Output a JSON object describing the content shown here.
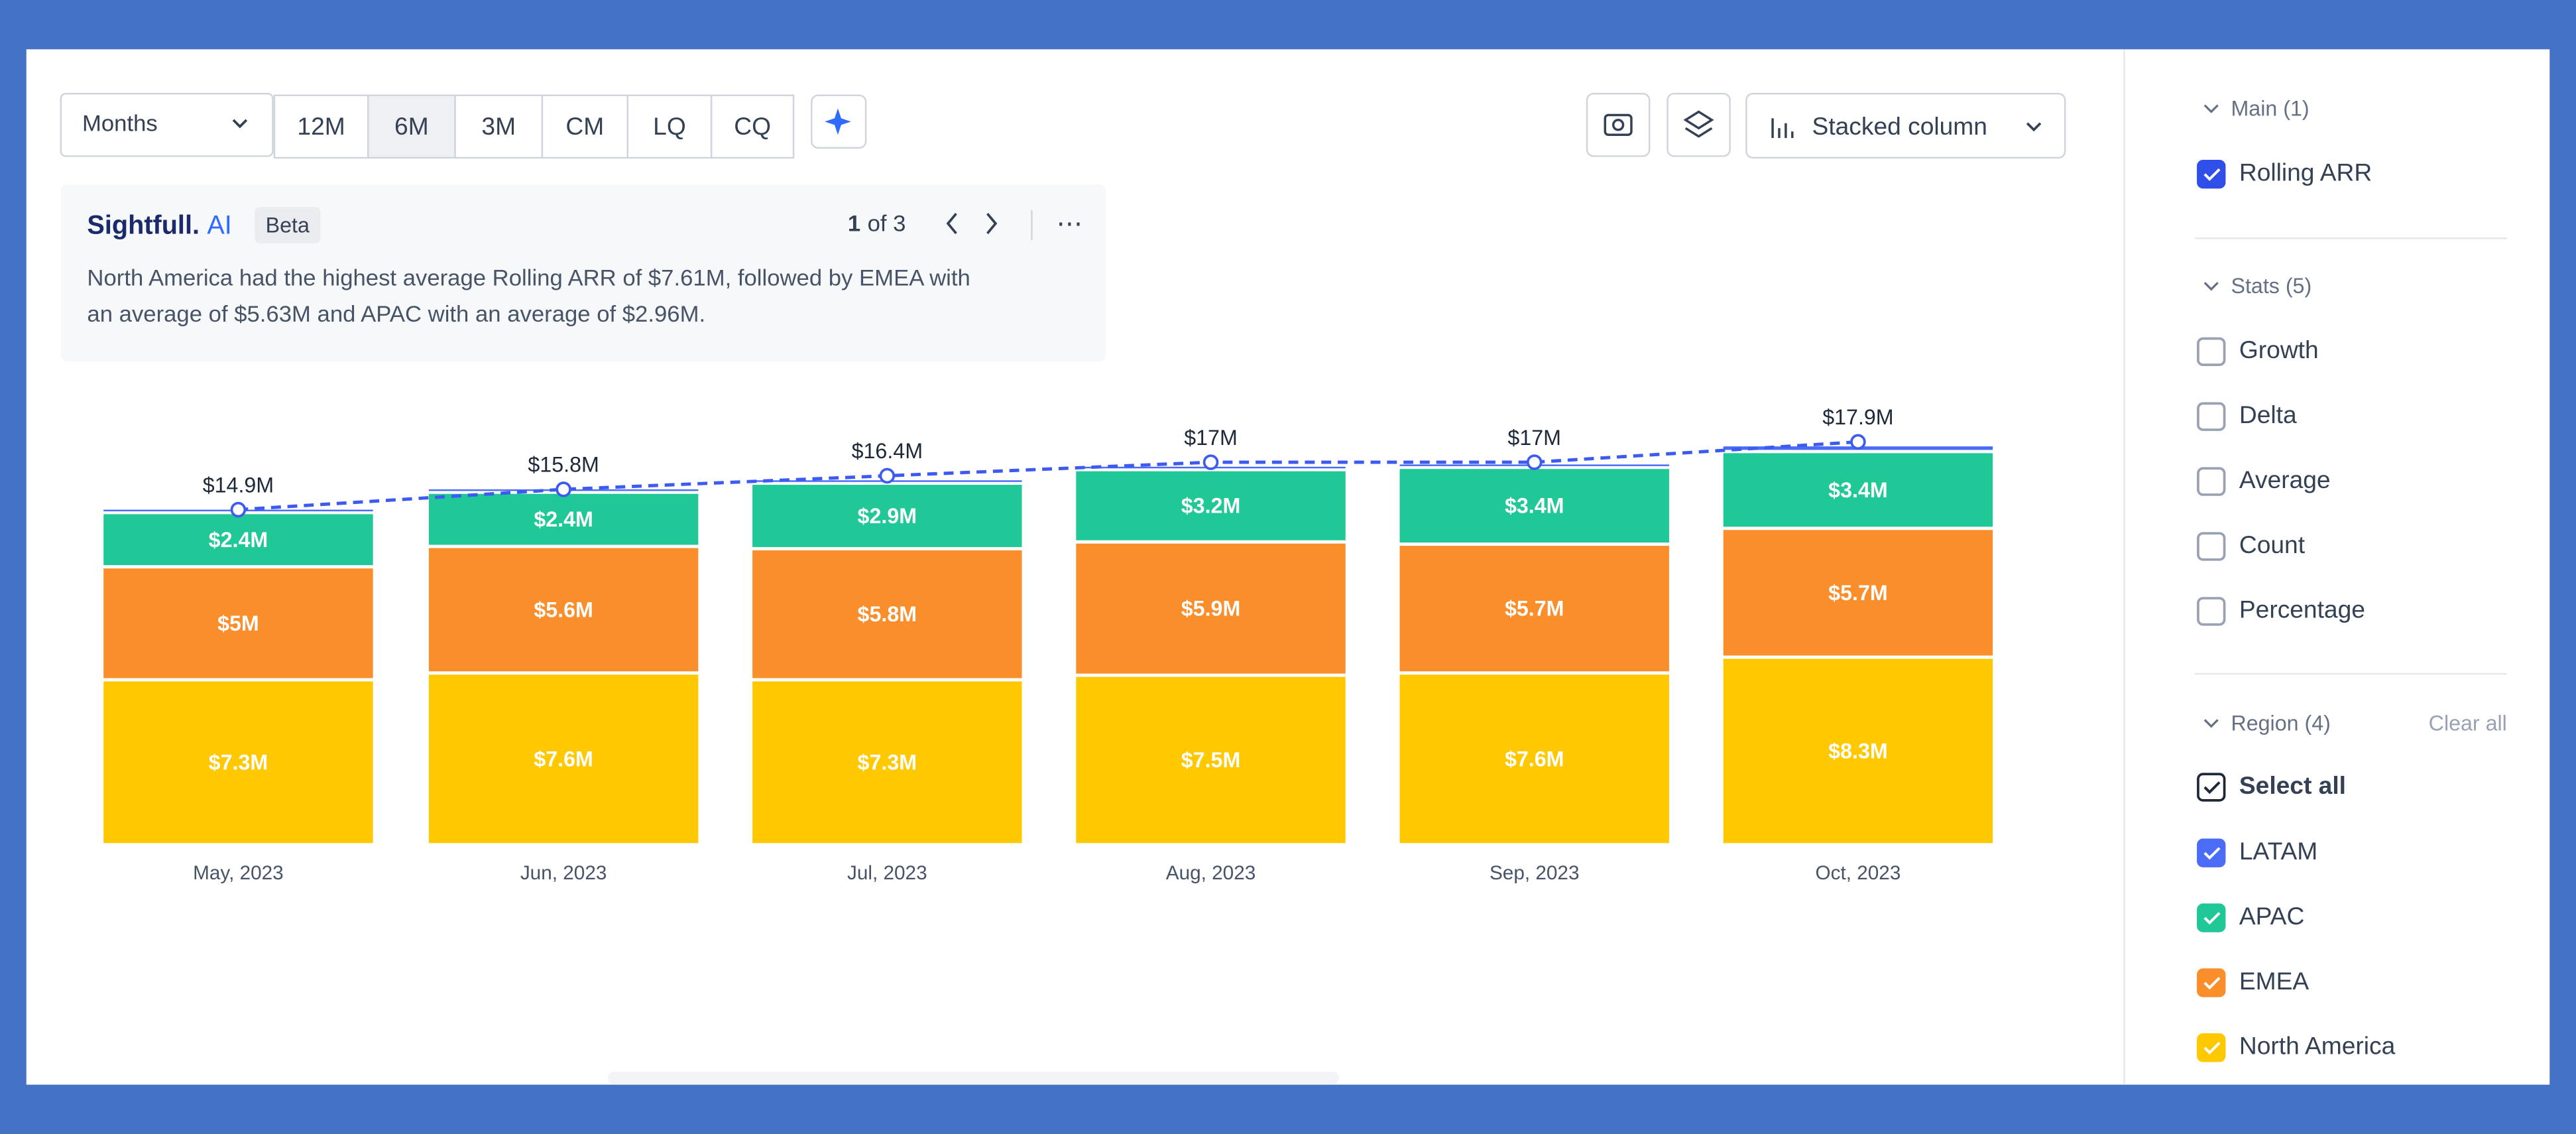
{
  "chart_data": {
    "type": "stacked-bar",
    "categories": [
      "May, 2023",
      "Jun, 2023",
      "Jul, 2023",
      "Aug, 2023",
      "Sep, 2023",
      "Oct, 2023"
    ],
    "series": [
      {
        "name": "North America",
        "color": "#ffc800",
        "values": [
          7.3,
          7.6,
          7.3,
          7.5,
          7.6,
          8.3
        ],
        "value_labels": [
          "$7.3M",
          "$7.6M",
          "$7.3M",
          "$7.5M",
          "$7.6M",
          "$8.3M"
        ]
      },
      {
        "name": "EMEA",
        "color": "#f98e2b",
        "values": [
          5,
          5.6,
          5.8,
          5.9,
          5.7,
          5.7
        ],
        "value_labels": [
          "$5M",
          "$5.6M",
          "$5.8M",
          "$5.9M",
          "$5.7M",
          "$5.7M"
        ]
      },
      {
        "name": "APAC",
        "color": "#1fc896",
        "values": [
          2.4,
          2.4,
          2.9,
          3.2,
          3.4,
          3.4
        ],
        "value_labels": [
          "$2.4M",
          "$2.4M",
          "$2.9M",
          "$3.2M",
          "$3.4M",
          "$3.4M"
        ]
      },
      {
        "name": "LATAM",
        "color": "#4a6cf7",
        "values": [
          0.2,
          0.2,
          0.2,
          0.2,
          0.2,
          0.3
        ]
      }
    ],
    "line": {
      "name": "Rolling ARR",
      "color": "#3d5af1",
      "values": [
        14.9,
        15.8,
        16.4,
        17,
        17,
        17.9
      ],
      "value_labels": [
        "$14.9M",
        "$15.8M",
        "$16.4M",
        "$17M",
        "$17M",
        "$17.9M"
      ]
    }
  },
  "toolbar": {
    "period": "Months",
    "ranges": [
      "12M",
      "6M",
      "3M",
      "CM",
      "LQ",
      "CQ"
    ],
    "chart_type": "Stacked column"
  },
  "insight": {
    "brand": "Sightfull.",
    "brand_ai": "AI",
    "badge": "Beta",
    "page": "1",
    "page_total": "of 3",
    "lines": [
      "North America had the highest average Rolling ARR of $7.61M, followed by EMEA with",
      "an average of $5.63M and APAC with an average of $2.96M."
    ]
  },
  "sidebar": {
    "main": "Main (1)",
    "stats": "Stats (5)",
    "stats_items": [
      "Growth",
      "Delta",
      "Average",
      "Count",
      "Percentage"
    ],
    "region": "Region (4)",
    "clear_all": "Clear all",
    "select_all": "Select all"
  }
}
